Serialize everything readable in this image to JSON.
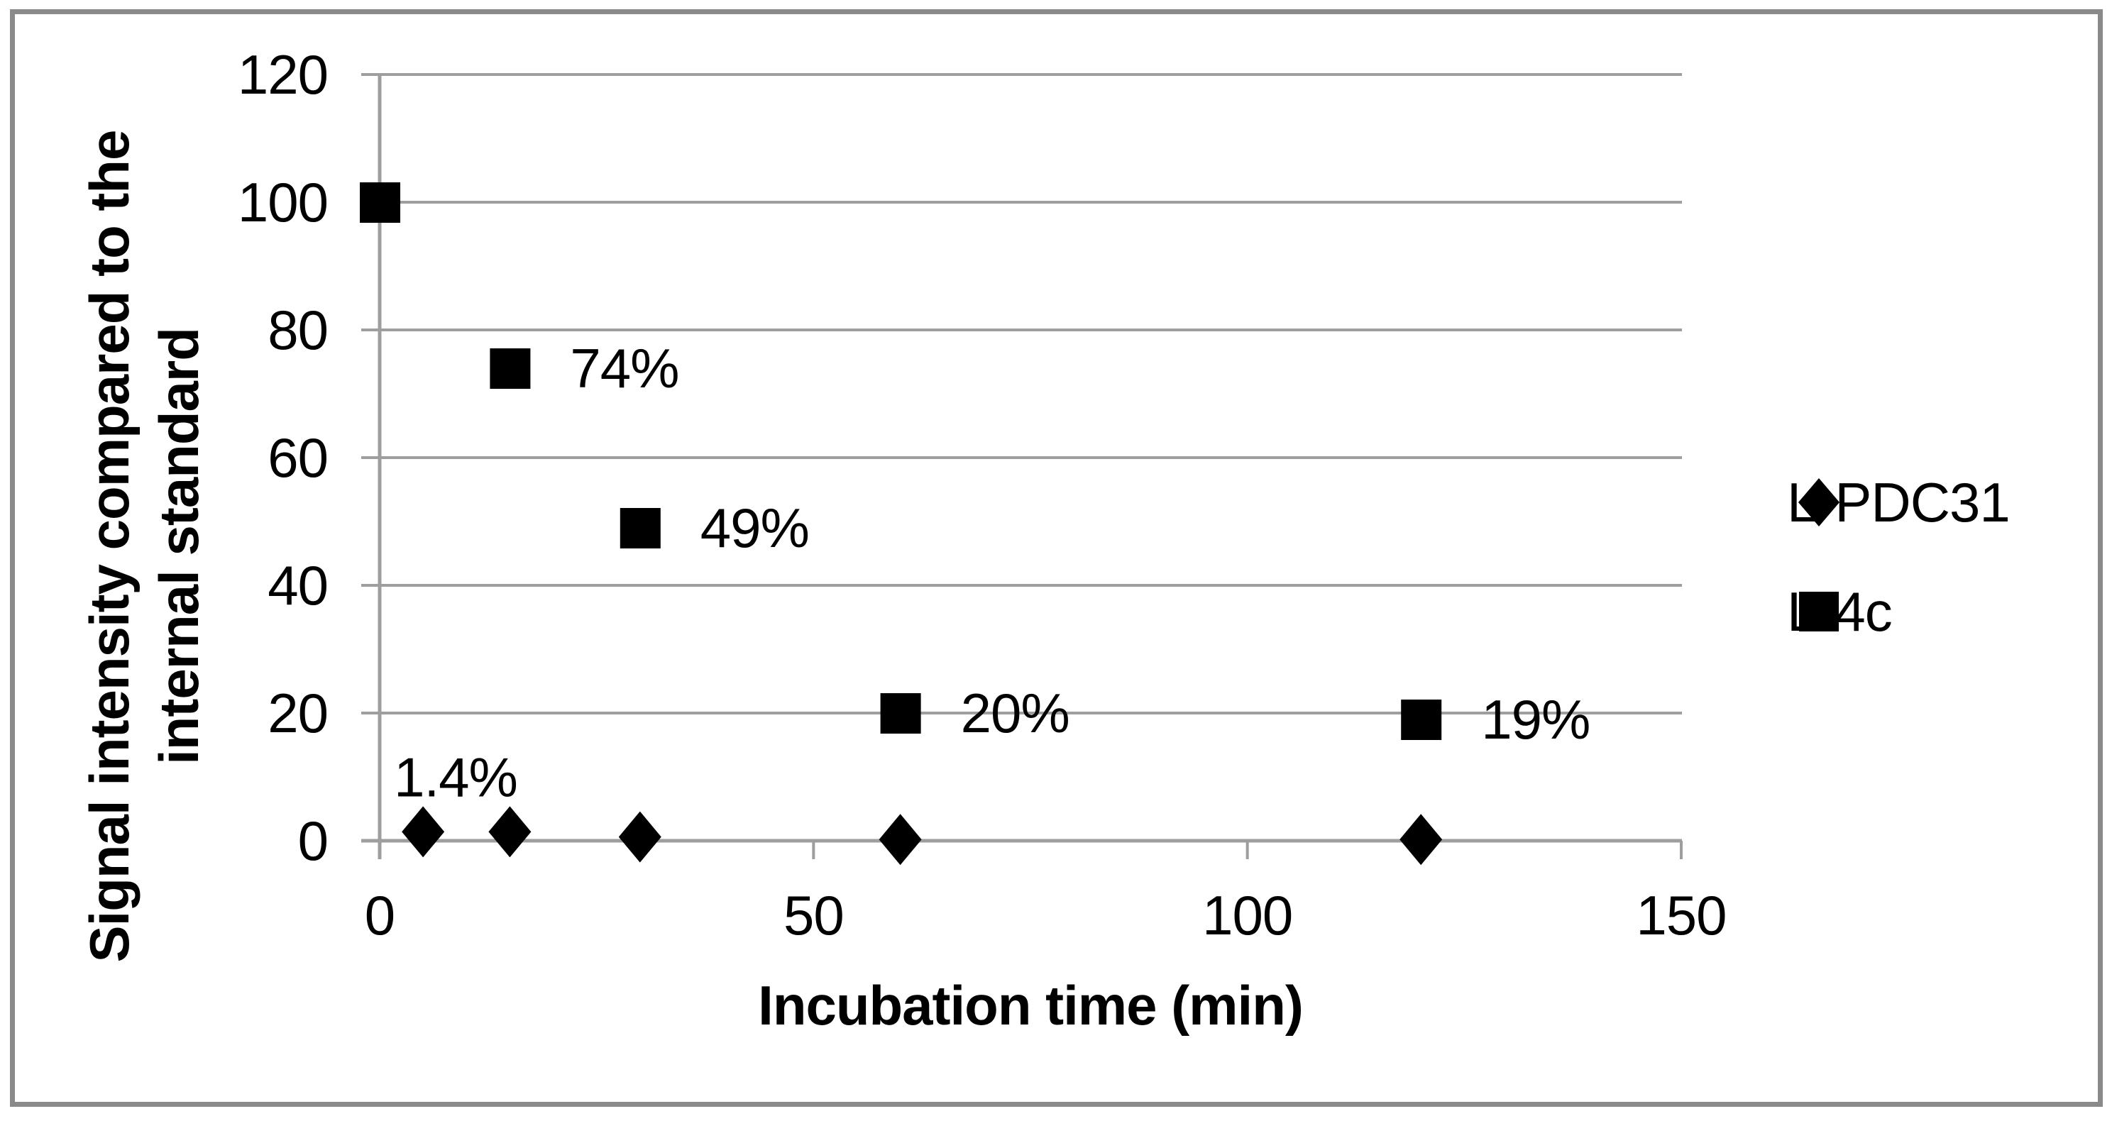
{
  "figure": {
    "background": "#ffffff",
    "border_color": "#8a8a8a"
  },
  "chart_data": {
    "type": "scatter",
    "title": "",
    "xlabel": "Incubation time (min)",
    "ylabel": "Signal intensity compared to the internal standard",
    "ylabel_line1": "Signal intensity compared to the",
    "ylabel_line2": "internal standard",
    "xlim": [
      0,
      150
    ],
    "ylim": [
      0,
      120
    ],
    "x_ticks": [
      0,
      50,
      100,
      150
    ],
    "y_ticks": [
      0,
      20,
      40,
      60,
      80,
      100,
      120
    ],
    "grid": "horizontal",
    "legend_position": "right",
    "series": [
      {
        "name": "L-PDC31",
        "marker": "diamond",
        "color": "#000000",
        "x": [
          5,
          15,
          30,
          60,
          120
        ],
        "y": [
          1.4,
          1.4,
          0.6,
          0.2,
          0.2
        ],
        "point_labels": [
          {
            "index": 0,
            "text": "1.4%",
            "position": "above"
          }
        ]
      },
      {
        "name": "L-4c",
        "marker": "square",
        "color": "#000000",
        "x": [
          0,
          15,
          30,
          60,
          120
        ],
        "y": [
          100,
          74,
          49,
          20,
          19
        ],
        "point_labels": [
          {
            "index": 1,
            "text": "74%"
          },
          {
            "index": 2,
            "text": "49%"
          },
          {
            "index": 3,
            "text": "20%"
          },
          {
            "index": 4,
            "text": "19%"
          }
        ]
      }
    ],
    "colors": {
      "marker": "#000000",
      "gridline": "#9e9e9e",
      "axis": "#9e9e9e",
      "text": "#000000",
      "frame": "#8a8a8a"
    }
  },
  "legend": {
    "items": [
      {
        "label": "L-PDC31",
        "marker": "diamond"
      },
      {
        "label": "L-4c",
        "marker": "square"
      }
    ]
  }
}
